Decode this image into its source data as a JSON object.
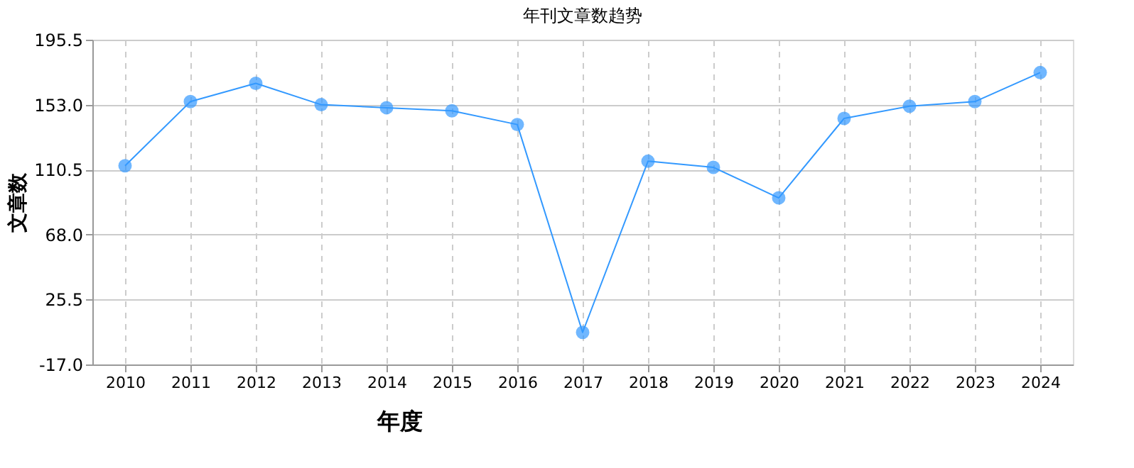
{
  "chart_data": {
    "type": "line",
    "title": "年刊文章数趋势",
    "xlabel": "年度",
    "ylabel": "文章数",
    "categories": [
      "2010",
      "2011",
      "2012",
      "2013",
      "2014",
      "2015",
      "2016",
      "2017",
      "2018",
      "2019",
      "2020",
      "2021",
      "2022",
      "2023",
      "2024"
    ],
    "series": [
      {
        "color": "#3399ff",
        "values": [
          113,
          155,
          167,
          153,
          151,
          149,
          140,
          4,
          116,
          112,
          92,
          144,
          152,
          155,
          174
        ]
      }
    ],
    "ylim": [
      -17,
      195.5
    ],
    "yticks": [
      {
        "value": -17,
        "label": "-17.0"
      },
      {
        "value": 25.5,
        "label": "25.5"
      },
      {
        "value": 68,
        "label": "68.0"
      },
      {
        "value": 110.5,
        "label": "110.5"
      },
      {
        "value": 153,
        "label": "153.0"
      },
      {
        "value": 195.5,
        "label": "195.5"
      }
    ],
    "grid": true,
    "marker": "circle",
    "line_style": "solid"
  }
}
